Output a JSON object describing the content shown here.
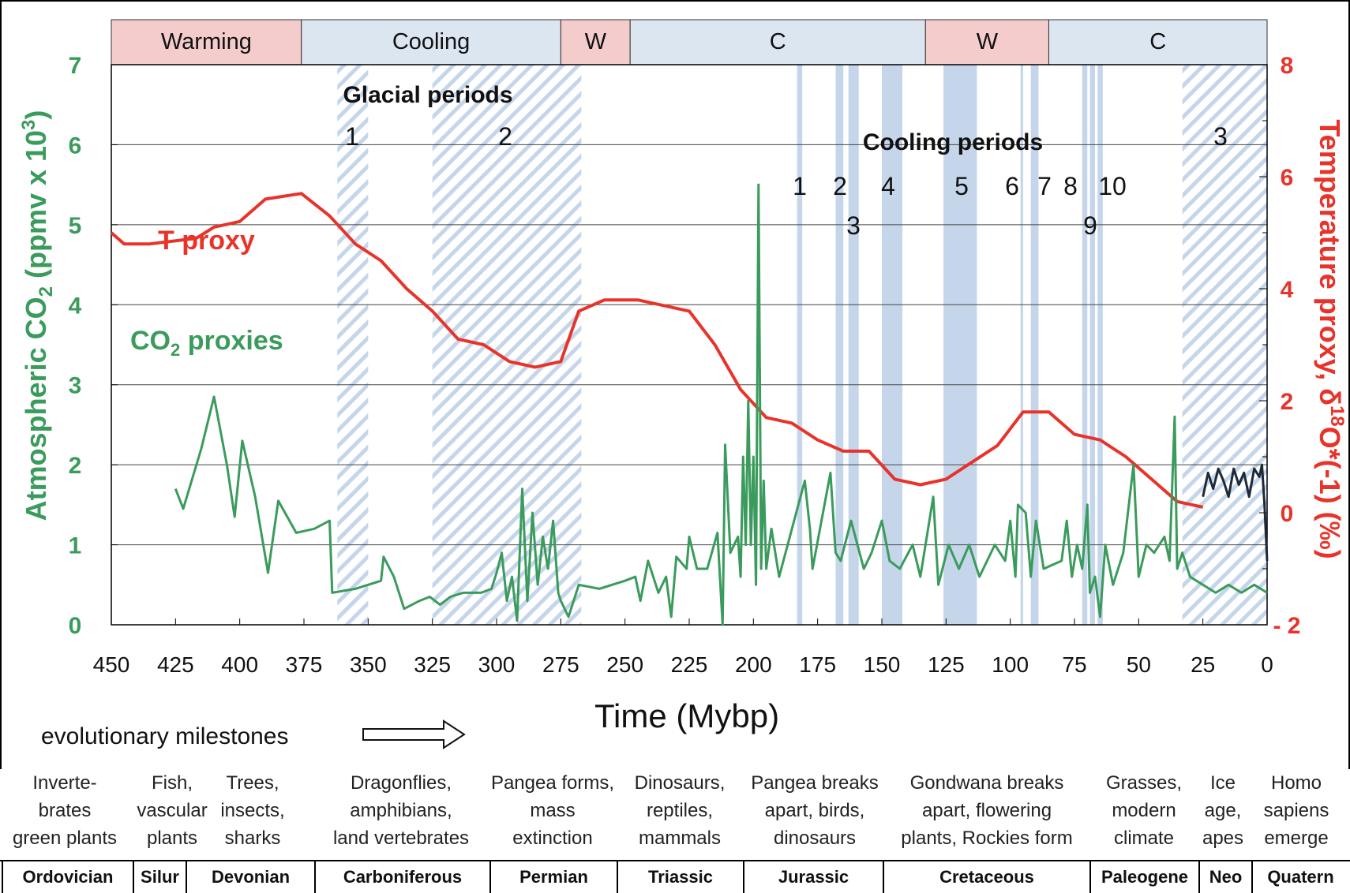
{
  "chart_data": {
    "type": "line",
    "xlabel": "Time (Mybp)",
    "x_ticks": [
      "450",
      "425",
      "400",
      "375",
      "350",
      "325",
      "300",
      "275",
      "250",
      "225",
      "200",
      "175",
      "150",
      "125",
      "100",
      "75",
      "50",
      "25",
      "0"
    ],
    "xlim": [
      450,
      0
    ],
    "y_left_label": "Atmospheric CO",
    "y_left_sub": "2",
    "y_left_tail": " (ppmv x 10",
    "y_left_sup": "3",
    "y_left_end": ")",
    "y_left_ticks": [
      "0",
      "1",
      "2",
      "3",
      "4",
      "5",
      "6",
      "7"
    ],
    "ylim_left": [
      0,
      7
    ],
    "y_right_label": "Temperature proxy, δ",
    "y_right_sup": "18",
    "y_right_tail": "O*(-1) (‰)",
    "y_right_ticks": [
      "- 2",
      "0",
      "2",
      "4",
      "6",
      "8"
    ],
    "ylim_right": [
      -2,
      8
    ],
    "phase_bar": [
      {
        "label": "Warming",
        "from": 450,
        "to": 376,
        "kind": "warm"
      },
      {
        "label": "Cooling",
        "from": 376,
        "to": 275,
        "kind": "cool"
      },
      {
        "label": "W",
        "from": 275,
        "to": 248,
        "kind": "warm"
      },
      {
        "label": "C",
        "from": 248,
        "to": 133,
        "kind": "cool"
      },
      {
        "label": "W",
        "from": 133,
        "to": 85,
        "kind": "warm"
      },
      {
        "label": "C",
        "from": 85,
        "to": 0,
        "kind": "cool"
      }
    ],
    "glacial_title": "Glacial periods",
    "glacial_periods": [
      {
        "label": "1",
        "from": 362,
        "to": 350
      },
      {
        "label": "2",
        "from": 325,
        "to": 267
      },
      {
        "label": "3",
        "from": 33,
        "to": 0
      }
    ],
    "cooling_title": "Cooling periods",
    "cooling_periods": [
      {
        "label": "1",
        "from": 183,
        "to": 181
      },
      {
        "label": "2",
        "from": 168,
        "to": 165
      },
      {
        "label": "3",
        "from": 163,
        "to": 159
      },
      {
        "label": "4",
        "from": 150,
        "to": 142
      },
      {
        "label": "5",
        "from": 126,
        "to": 113
      },
      {
        "label": "6",
        "from": 96,
        "to": 95
      },
      {
        "label": "7",
        "from": 92,
        "to": 89
      },
      {
        "label": "8",
        "from": 72,
        "to": 70
      },
      {
        "label": "9",
        "from": 69,
        "to": 67
      },
      {
        "label": "10",
        "from": 66,
        "to": 64
      }
    ],
    "series": [
      {
        "name": "T proxy",
        "axis": "right",
        "color": "#e8332a",
        "points": [
          [
            450,
            5.0
          ],
          [
            445,
            4.8
          ],
          [
            435,
            4.8
          ],
          [
            417,
            4.9
          ],
          [
            410,
            5.1
          ],
          [
            400,
            5.2
          ],
          [
            390,
            5.6
          ],
          [
            376,
            5.7
          ],
          [
            365,
            5.3
          ],
          [
            355,
            4.8
          ],
          [
            345,
            4.5
          ],
          [
            335,
            4.0
          ],
          [
            325,
            3.6
          ],
          [
            315,
            3.1
          ],
          [
            305,
            3.0
          ],
          [
            295,
            2.7
          ],
          [
            285,
            2.6
          ],
          [
            275,
            2.7
          ],
          [
            268,
            3.6
          ],
          [
            258,
            3.8
          ],
          [
            245,
            3.8
          ],
          [
            235,
            3.7
          ],
          [
            225,
            3.6
          ],
          [
            215,
            3.0
          ],
          [
            205,
            2.2
          ],
          [
            195,
            1.7
          ],
          [
            185,
            1.6
          ],
          [
            175,
            1.3
          ],
          [
            165,
            1.1
          ],
          [
            155,
            1.1
          ],
          [
            145,
            0.6
          ],
          [
            135,
            0.5
          ],
          [
            125,
            0.6
          ],
          [
            115,
            0.9
          ],
          [
            105,
            1.2
          ],
          [
            95,
            1.8
          ],
          [
            85,
            1.8
          ],
          [
            75,
            1.4
          ],
          [
            65,
            1.3
          ],
          [
            55,
            1.0
          ],
          [
            45,
            0.6
          ],
          [
            35,
            0.2
          ],
          [
            25,
            0.1
          ]
        ]
      },
      {
        "name": "CO2 proxies",
        "axis": "left",
        "color": "#3a9b5c",
        "points": [
          [
            425,
            1.7
          ],
          [
            422,
            1.45
          ],
          [
            415,
            2.2
          ],
          [
            410,
            2.85
          ],
          [
            405,
            2.0
          ],
          [
            402,
            1.35
          ],
          [
            399,
            2.3
          ],
          [
            394,
            1.6
          ],
          [
            389,
            0.65
          ],
          [
            385,
            1.55
          ],
          [
            378,
            1.15
          ],
          [
            371,
            1.2
          ],
          [
            365,
            1.3
          ],
          [
            364,
            0.4
          ],
          [
            355,
            0.45
          ],
          [
            345,
            0.55
          ],
          [
            344,
            0.85
          ],
          [
            340,
            0.6
          ],
          [
            336,
            0.2
          ],
          [
            330,
            0.3
          ],
          [
            326,
            0.35
          ],
          [
            322,
            0.25
          ],
          [
            318,
            0.35
          ],
          [
            313,
            0.4
          ],
          [
            306,
            0.4
          ],
          [
            302,
            0.45
          ],
          [
            300,
            0.65
          ],
          [
            298,
            0.9
          ],
          [
            296,
            0.3
          ],
          [
            294,
            0.6
          ],
          [
            292,
            0.05
          ],
          [
            290,
            1.7
          ],
          [
            288,
            0.3
          ],
          [
            286,
            1.4
          ],
          [
            284,
            0.5
          ],
          [
            282,
            1.1
          ],
          [
            280,
            0.7
          ],
          [
            278,
            1.3
          ],
          [
            276,
            0.4
          ],
          [
            275,
            0.3
          ],
          [
            272,
            0.1
          ],
          [
            268,
            0.5
          ],
          [
            260,
            0.45
          ],
          [
            250,
            0.55
          ],
          [
            246,
            0.6
          ],
          [
            244,
            0.3
          ],
          [
            241,
            0.8
          ],
          [
            237,
            0.4
          ],
          [
            234,
            0.6
          ],
          [
            232,
            0.1
          ],
          [
            230,
            0.85
          ],
          [
            226,
            0.7
          ],
          [
            225,
            1.1
          ],
          [
            222,
            0.7
          ],
          [
            218,
            0.7
          ],
          [
            214,
            1.15
          ],
          [
            212,
            0.0
          ],
          [
            211,
            2.25
          ],
          [
            209,
            0.9
          ],
          [
            206,
            1.1
          ],
          [
            205,
            0.6
          ],
          [
            204,
            2.1
          ],
          [
            203,
            1.0
          ],
          [
            202,
            2.8
          ],
          [
            201,
            1.0
          ],
          [
            200,
            2.1
          ],
          [
            199,
            0.5
          ],
          [
            198,
            5.5
          ],
          [
            197,
            0.7
          ],
          [
            196,
            1.8
          ],
          [
            195,
            0.7
          ],
          [
            193,
            1.2
          ],
          [
            190,
            0.6
          ],
          [
            180,
            1.8
          ],
          [
            178,
            1.2
          ],
          [
            177,
            0.7
          ],
          [
            170,
            1.9
          ],
          [
            168,
            0.9
          ],
          [
            166,
            0.8
          ],
          [
            162,
            1.3
          ],
          [
            157,
            0.7
          ],
          [
            154,
            0.9
          ],
          [
            150,
            1.3
          ],
          [
            147,
            0.8
          ],
          [
            143,
            0.7
          ],
          [
            138,
            1.0
          ],
          [
            135,
            0.6
          ],
          [
            130,
            1.6
          ],
          [
            128,
            0.5
          ],
          [
            124,
            1.0
          ],
          [
            120,
            0.7
          ],
          [
            116,
            1.0
          ],
          [
            112,
            0.6
          ],
          [
            106,
            1.0
          ],
          [
            102,
            0.8
          ],
          [
            100,
            1.3
          ],
          [
            98,
            0.6
          ],
          [
            97,
            1.5
          ],
          [
            94,
            1.4
          ],
          [
            92,
            0.6
          ],
          [
            90,
            1.3
          ],
          [
            87,
            0.7
          ],
          [
            80,
            0.8
          ],
          [
            78,
            1.3
          ],
          [
            76,
            0.6
          ],
          [
            74,
            1.0
          ],
          [
            72,
            0.7
          ],
          [
            70,
            1.5
          ],
          [
            69,
            0.4
          ],
          [
            67,
            0.6
          ],
          [
            65,
            0.1
          ],
          [
            63,
            1.0
          ],
          [
            60,
            0.5
          ],
          [
            56,
            0.9
          ],
          [
            52,
            2.0
          ],
          [
            50,
            0.6
          ],
          [
            47,
            1.0
          ],
          [
            44,
            0.9
          ],
          [
            40,
            1.1
          ],
          [
            38,
            0.8
          ],
          [
            36,
            2.6
          ],
          [
            35,
            0.7
          ],
          [
            33,
            0.9
          ],
          [
            30,
            0.6
          ],
          [
            25,
            0.5
          ],
          [
            20,
            0.4
          ],
          [
            15,
            0.5
          ],
          [
            10,
            0.4
          ],
          [
            5,
            0.5
          ],
          [
            0,
            0.4
          ]
        ]
      },
      {
        "name": "",
        "axis": "left",
        "color": "#1e2a3a",
        "points": [
          [
            25,
            1.6
          ],
          [
            23,
            1.9
          ],
          [
            21,
            1.7
          ],
          [
            19,
            1.95
          ],
          [
            17,
            1.8
          ],
          [
            15,
            1.6
          ],
          [
            13,
            1.95
          ],
          [
            11,
            1.75
          ],
          [
            9,
            1.9
          ],
          [
            7,
            1.6
          ],
          [
            5,
            1.95
          ],
          [
            3,
            1.85
          ],
          [
            2,
            2.0
          ],
          [
            1,
            1.5
          ],
          [
            0,
            0.8
          ]
        ]
      }
    ],
    "series_labels": {
      "t_proxy": "T proxy",
      "co2_main": "CO",
      "co2_sub": "2",
      "co2_tail": " proxies"
    },
    "colors": {
      "warm": "#f4cccc",
      "cool": "#dce6f1",
      "band": "#c5d6eb",
      "co2": "#3a9b5c",
      "temp": "#e8332a",
      "modern": "#1e2a3a"
    }
  },
  "milestones_label": "evolutionary milestones",
  "milestones": [
    "Inverte-\nbrates\ngreen plants",
    "Fish,\nvascular\nplants",
    "Trees,\ninsects,\nsharks",
    "Dragonflies,\namphibians,\nland vertebrates",
    "Pangea forms,\nmass\nextinction",
    "Dinosaurs,\nreptiles,\nmammals",
    "Pangea breaks\napart, birds,\ndinosaurs",
    "Gondwana  breaks\napart, flowering\nplants, Rockies form",
    "Grasses,\nmodern\nclimate",
    "Ice\nage,\napes",
    "Homo\nsapiens\nemerge"
  ],
  "periods": [
    "Ordovician",
    "Silur",
    "Devonian",
    "Carboniferous",
    "Permian",
    "Triassic",
    "Jurassic",
    "Cretaceous",
    "Paleogene",
    "Neo",
    "Quatern"
  ]
}
